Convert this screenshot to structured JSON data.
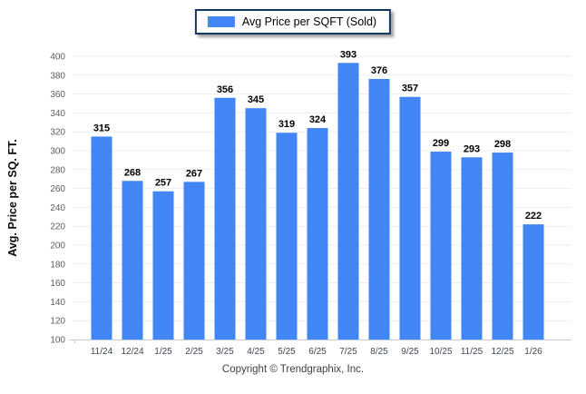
{
  "chart_data": {
    "type": "bar",
    "title": "Avg Price per SQFT (Sold)",
    "categories": [
      "11/24",
      "12/24",
      "1/25",
      "2/25",
      "3/25",
      "4/25",
      "5/25",
      "6/25",
      "7/25",
      "8/25",
      "9/25",
      "10/25",
      "11/25",
      "12/25",
      "1/26"
    ],
    "values": [
      315,
      268,
      257,
      267,
      356,
      345,
      319,
      324,
      393,
      376,
      357,
      299,
      293,
      298,
      222
    ],
    "xlabel": "",
    "ylabel": "Avg. Price per SQ. FT.",
    "ylim": [
      100,
      400
    ],
    "ytick_step": 20,
    "grid": true,
    "legend_position": "top-center",
    "bar_color": "#4285F4"
  },
  "colors": {
    "bar": "#4285F4",
    "legend_border": "#17365D",
    "gridline": "#EDEDED",
    "axis_line": "#C6CBD3",
    "y_tick_label": "#5C5C5C",
    "x_tick_label": "#3D4753",
    "value_label": "#000000",
    "axis_title": "#0A0A0A"
  },
  "footer": {
    "copyright": "Copyright © Trendgraphix, Inc."
  }
}
